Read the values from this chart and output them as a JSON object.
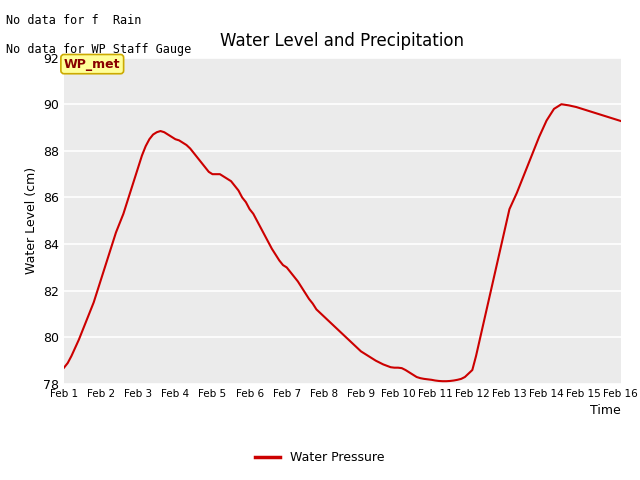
{
  "title": "Water Level and Precipitation",
  "xlabel": "Time",
  "ylabel": "Water Level (cm)",
  "ylim": [
    78,
    92
  ],
  "yticks": [
    78,
    80,
    82,
    84,
    86,
    88,
    90,
    92
  ],
  "xtick_labels": [
    "Feb 1",
    "Feb 2",
    "Feb 3",
    "Feb 4",
    "Feb 5",
    "Feb 6",
    "Feb 7",
    "Feb 8",
    "Feb 9",
    "Feb 10",
    "Feb 11",
    "Feb 12",
    "Feb 13",
    "Feb 14",
    "Feb 15",
    "Feb 16"
  ],
  "line_color": "#cc0000",
  "line_width": 1.5,
  "background_color": "#ebebeb",
  "legend_label": "Water Pressure",
  "legend_line_color": "#cc0000",
  "annotation_text1": "No data for f  Rain",
  "annotation_text2": "No data for WP Staff Gauge",
  "wp_met_label": "WP_met",
  "wp_met_bg": "#ffff99",
  "wp_met_border": "#ccaa00",
  "wp_met_text_color": "#880000",
  "x_values": [
    1.0,
    1.05,
    1.1,
    1.15,
    1.2,
    1.3,
    1.4,
    1.5,
    1.6,
    1.7,
    1.8,
    1.9,
    2.0,
    2.1,
    2.2,
    2.3,
    2.4,
    2.5,
    2.6,
    2.7,
    2.8,
    2.9,
    3.0,
    3.1,
    3.2,
    3.3,
    3.4,
    3.5,
    3.6,
    3.7,
    3.8,
    3.9,
    4.0,
    4.1,
    4.2,
    4.3,
    4.4,
    4.5,
    4.6,
    4.7,
    4.8,
    4.9,
    5.0,
    5.1,
    5.2,
    5.3,
    5.4,
    5.5,
    5.6,
    5.7,
    5.8,
    5.9,
    6.0,
    6.1,
    6.2,
    6.3,
    6.4,
    6.5,
    6.6,
    6.7,
    6.8,
    6.9,
    7.0,
    7.1,
    7.2,
    7.3,
    7.4,
    7.5,
    7.6,
    7.7,
    7.8,
    7.9,
    8.0,
    8.1,
    8.2,
    8.3,
    8.4,
    8.5,
    8.6,
    8.7,
    8.8,
    8.9,
    9.0,
    9.1,
    9.2,
    9.3,
    9.4,
    9.5,
    9.6,
    9.7,
    9.8,
    9.9,
    10.0,
    10.1,
    10.2,
    10.3,
    10.4,
    10.5,
    10.6,
    10.7,
    10.8,
    10.9,
    11.0,
    11.1,
    11.2,
    11.3,
    11.4,
    11.5,
    11.6,
    11.7,
    11.8,
    11.9,
    12.0,
    12.1,
    12.2,
    12.3,
    12.4,
    12.5,
    12.6,
    12.7,
    12.8,
    12.9,
    13.0,
    13.2,
    13.4,
    13.6,
    13.8,
    14.0,
    14.2,
    14.4,
    14.6,
    14.8,
    15.0,
    15.2,
    15.4,
    15.6,
    15.8,
    16.0
  ],
  "y_values": [
    78.7,
    78.8,
    78.9,
    79.05,
    79.2,
    79.55,
    79.9,
    80.3,
    80.7,
    81.1,
    81.5,
    82.0,
    82.5,
    83.0,
    83.5,
    84.0,
    84.5,
    84.9,
    85.3,
    85.8,
    86.3,
    86.8,
    87.3,
    87.8,
    88.2,
    88.5,
    88.7,
    88.8,
    88.85,
    88.8,
    88.7,
    88.6,
    88.5,
    88.45,
    88.35,
    88.25,
    88.1,
    87.9,
    87.7,
    87.5,
    87.3,
    87.1,
    87.0,
    87.0,
    87.0,
    86.9,
    86.8,
    86.7,
    86.5,
    86.3,
    86.0,
    85.8,
    85.5,
    85.3,
    85.0,
    84.7,
    84.4,
    84.1,
    83.8,
    83.55,
    83.3,
    83.1,
    83.0,
    82.8,
    82.6,
    82.4,
    82.15,
    81.9,
    81.65,
    81.45,
    81.2,
    81.05,
    80.9,
    80.75,
    80.6,
    80.45,
    80.3,
    80.15,
    80.0,
    79.85,
    79.7,
    79.55,
    79.4,
    79.3,
    79.2,
    79.1,
    79.0,
    78.92,
    78.84,
    78.78,
    78.72,
    78.7,
    78.7,
    78.68,
    78.6,
    78.5,
    78.4,
    78.3,
    78.25,
    78.22,
    78.2,
    78.18,
    78.15,
    78.13,
    78.12,
    78.12,
    78.13,
    78.15,
    78.18,
    78.22,
    78.3,
    78.45,
    78.6,
    79.2,
    79.9,
    80.6,
    81.3,
    82.0,
    82.7,
    83.4,
    84.1,
    84.8,
    85.5,
    86.2,
    87.0,
    87.8,
    88.6,
    89.3,
    89.8,
    90.0,
    89.95,
    89.88,
    89.78,
    89.68,
    89.58,
    89.48,
    89.38,
    89.28
  ]
}
